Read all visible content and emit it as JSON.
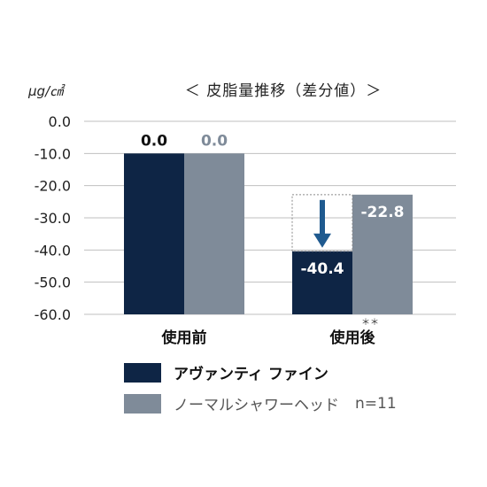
{
  "colors": {
    "series_primary": "#0e2545",
    "series_secondary": "#7f8b99",
    "gridline": "#bfbfbf",
    "axis_text": "#222222",
    "arrow": "#1f5a8f",
    "dotted_box": "#8a8a8a"
  },
  "chart_data": {
    "type": "bar",
    "title": "＜ 皮脂量推移（差分値）＞",
    "unit_label": "μg/㎠",
    "categories": [
      "使用前",
      "使用後"
    ],
    "series": [
      {
        "name": "アヴァンティ ファイン",
        "values": [
          0.0,
          -40.4
        ]
      },
      {
        "name": "ノーマルシャワーヘッド",
        "values": [
          0.0,
          -22.8
        ]
      }
    ],
    "data_labels": [
      [
        "0.0",
        "-40.4"
      ],
      [
        "0.0",
        "-22.8"
      ]
    ],
    "yticks": [
      "0.0",
      "-10.0",
      "-20.0",
      "-30.0",
      "-40.0",
      "-50.0",
      "-60.0"
    ],
    "ylim": [
      -60,
      0
    ],
    "grid": true,
    "legend_position": "bottom",
    "sample_size": "n=11",
    "significance_mark": "＊＊",
    "annotation": "arrow indicating drop in primary series after use"
  }
}
